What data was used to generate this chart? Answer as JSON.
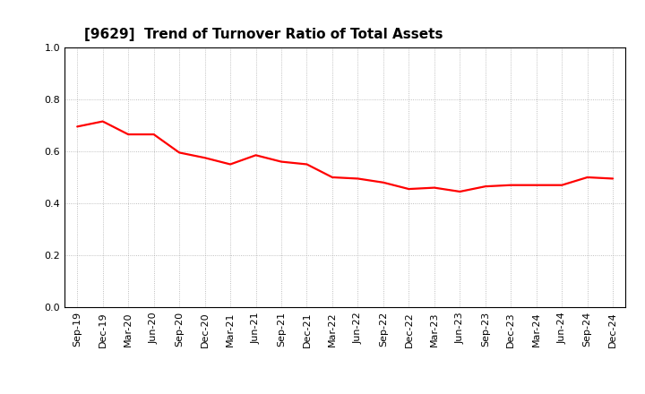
{
  "title": "[9629]  Trend of Turnover Ratio of Total Assets",
  "x_labels": [
    "Sep-19",
    "Dec-19",
    "Mar-20",
    "Jun-20",
    "Sep-20",
    "Dec-20",
    "Mar-21",
    "Jun-21",
    "Sep-21",
    "Dec-21",
    "Mar-22",
    "Jun-22",
    "Sep-22",
    "Dec-22",
    "Mar-23",
    "Jun-23",
    "Sep-23",
    "Dec-23",
    "Mar-24",
    "Jun-24",
    "Sep-24",
    "Dec-24"
  ],
  "y_values": [
    0.695,
    0.715,
    0.665,
    0.665,
    0.595,
    0.575,
    0.55,
    0.585,
    0.56,
    0.55,
    0.5,
    0.495,
    0.48,
    0.455,
    0.46,
    0.445,
    0.465,
    0.47,
    0.47,
    0.47,
    0.5,
    0.495
  ],
  "line_color": "#ff0000",
  "line_width": 1.6,
  "ylim": [
    0.0,
    1.0
  ],
  "yticks": [
    0.0,
    0.2,
    0.4,
    0.6,
    0.8,
    1.0
  ],
  "background_color": "#ffffff",
  "grid_color": "#999999",
  "title_fontsize": 11,
  "tick_fontsize": 8
}
